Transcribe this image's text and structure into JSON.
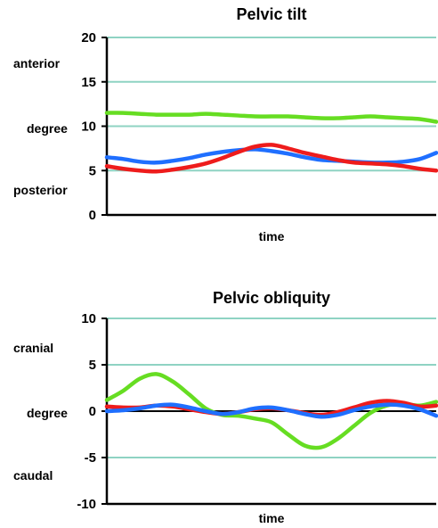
{
  "chart_data": [
    {
      "type": "line",
      "title": "Pelvic tilt",
      "xlabel": "time",
      "ylabel": "degree",
      "ylim": [
        0,
        20
      ],
      "yticks": [
        "0",
        "5",
        "10",
        "15",
        "20"
      ],
      "annotations": {
        "upper": "anterior",
        "lower": "posterior"
      },
      "grid": true,
      "x": [
        0,
        5,
        10,
        15,
        20,
        25,
        30,
        35,
        40,
        45,
        50,
        55,
        60,
        65,
        70,
        75,
        80,
        85,
        90,
        95,
        100
      ],
      "series": [
        {
          "color": "#66dd22",
          "values": [
            11.5,
            11.5,
            11.4,
            11.3,
            11.3,
            11.3,
            11.4,
            11.3,
            11.2,
            11.1,
            11.1,
            11.1,
            11.0,
            10.9,
            10.9,
            11.0,
            11.1,
            11.0,
            10.9,
            10.8,
            10.5
          ]
        },
        {
          "color": "#1f6fff",
          "values": [
            6.5,
            6.3,
            6.0,
            5.9,
            6.1,
            6.4,
            6.8,
            7.1,
            7.3,
            7.4,
            7.2,
            6.9,
            6.5,
            6.2,
            6.1,
            6.0,
            5.9,
            5.9,
            6.0,
            6.3,
            7.0
          ]
        },
        {
          "color": "#ee1c1c",
          "values": [
            5.5,
            5.2,
            5.0,
            4.9,
            5.1,
            5.4,
            5.8,
            6.4,
            7.1,
            7.7,
            7.9,
            7.5,
            7.0,
            6.6,
            6.2,
            5.9,
            5.8,
            5.7,
            5.5,
            5.2,
            5.0
          ]
        }
      ]
    },
    {
      "type": "line",
      "title": "Pelvic obliquity",
      "xlabel": "time",
      "ylabel": "degree",
      "ylim": [
        -10,
        10
      ],
      "yticks": [
        "-10",
        "-5",
        "0",
        "5",
        "10"
      ],
      "annotations": {
        "upper": "cranial",
        "lower": "caudal"
      },
      "grid": true,
      "x": [
        0,
        5,
        10,
        15,
        20,
        25,
        30,
        35,
        40,
        45,
        50,
        55,
        60,
        65,
        70,
        75,
        80,
        85,
        90,
        95,
        100
      ],
      "series": [
        {
          "color": "#66dd22",
          "values": [
            1.2,
            2.2,
            3.5,
            4.0,
            3.2,
            1.8,
            0.3,
            -0.4,
            -0.5,
            -0.8,
            -1.2,
            -2.5,
            -3.7,
            -3.9,
            -3.0,
            -1.6,
            -0.2,
            0.6,
            0.8,
            0.6,
            1.0
          ]
        },
        {
          "color": "#ee1c1c",
          "values": [
            0.5,
            0.4,
            0.4,
            0.6,
            0.5,
            0.2,
            -0.1,
            -0.3,
            -0.1,
            0.2,
            0.3,
            0.1,
            -0.2,
            -0.4,
            -0.1,
            0.4,
            0.9,
            1.1,
            0.9,
            0.5,
            0.6
          ]
        },
        {
          "color": "#1f6fff",
          "values": [
            0.0,
            0.1,
            0.3,
            0.6,
            0.7,
            0.4,
            0.0,
            -0.3,
            -0.1,
            0.3,
            0.4,
            0.1,
            -0.3,
            -0.6,
            -0.4,
            0.1,
            0.5,
            0.7,
            0.6,
            0.2,
            -0.5
          ]
        }
      ]
    }
  ]
}
